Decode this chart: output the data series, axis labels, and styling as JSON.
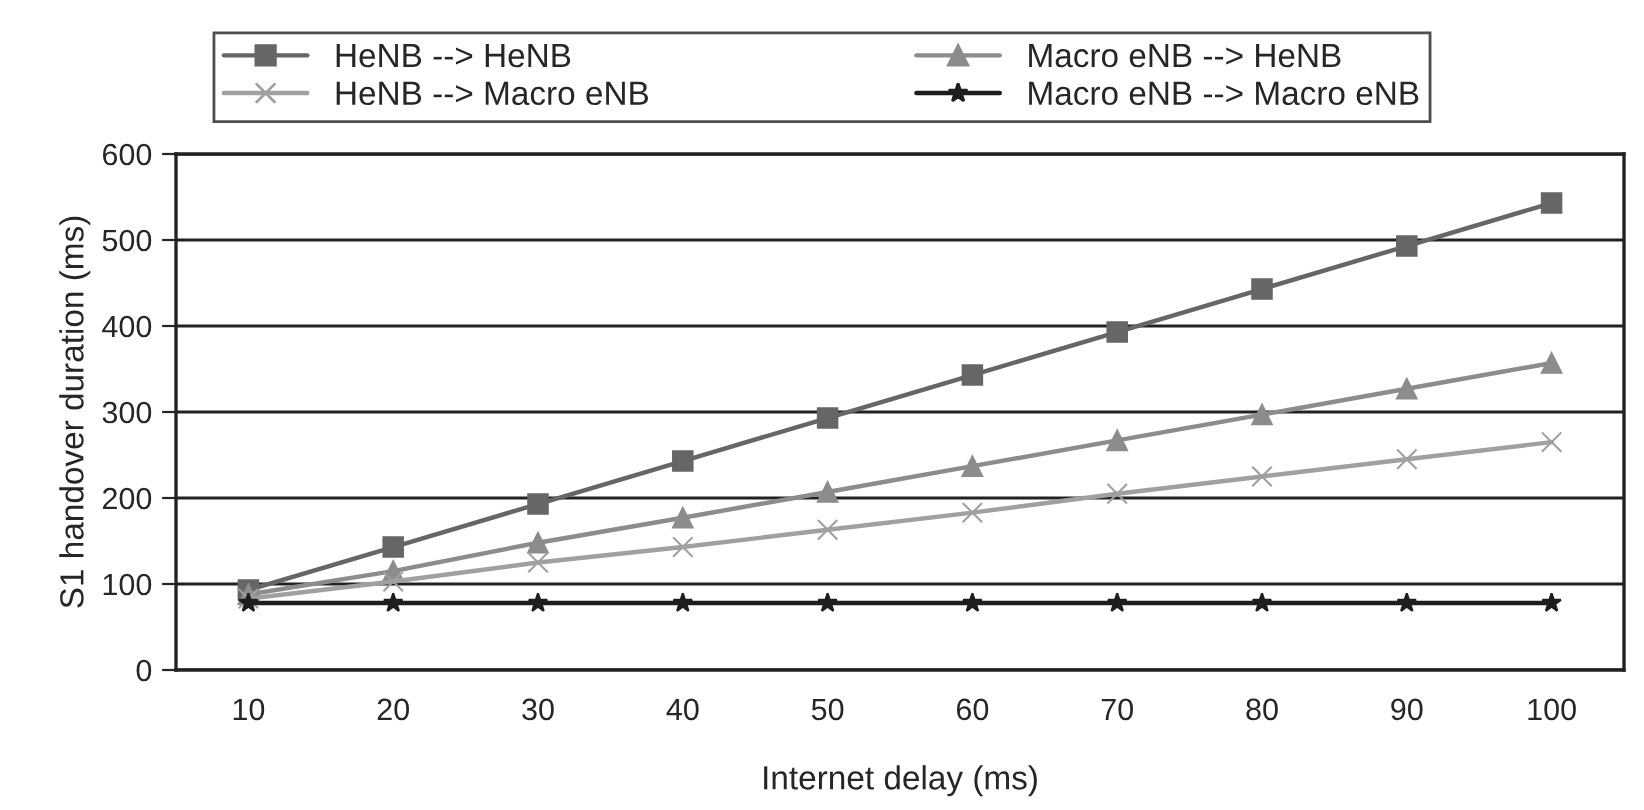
{
  "chart_data": {
    "type": "line",
    "xlabel": "Internet delay (ms)",
    "ylabel": "S1 handover duration (ms)",
    "categories": [
      "10",
      "20",
      "30",
      "40",
      "50",
      "60",
      "70",
      "80",
      "90",
      "100"
    ],
    "series": [
      {
        "name": "HeNB --> HeNB",
        "color": "#666666",
        "marker": "square",
        "values": [
          93,
          143,
          193,
          243,
          293,
          343,
          393,
          443,
          493,
          543
        ]
      },
      {
        "name": "Macro eNB --> HeNB",
        "color": "#8c8c8c",
        "marker": "triangle",
        "values": [
          88,
          115,
          148,
          177,
          207,
          237,
          267,
          297,
          327,
          357
        ]
      },
      {
        "name": "HeNB --> Macro eNB",
        "color": "#a0a0a0",
        "marker": "cross",
        "values": [
          83,
          103,
          125,
          143,
          163,
          183,
          205,
          225,
          245,
          265
        ]
      },
      {
        "name": "Macro eNB --> Macro eNB",
        "color": "#1e1e1e",
        "marker": "star",
        "values": [
          78,
          78,
          78,
          78,
          78,
          78,
          78,
          78,
          78,
          78
        ]
      }
    ],
    "ylim": [
      0,
      600
    ],
    "yticks": [
      0,
      100,
      200,
      300,
      400,
      500,
      600
    ],
    "grid": "y",
    "legend": "top",
    "line_style": "solid"
  }
}
